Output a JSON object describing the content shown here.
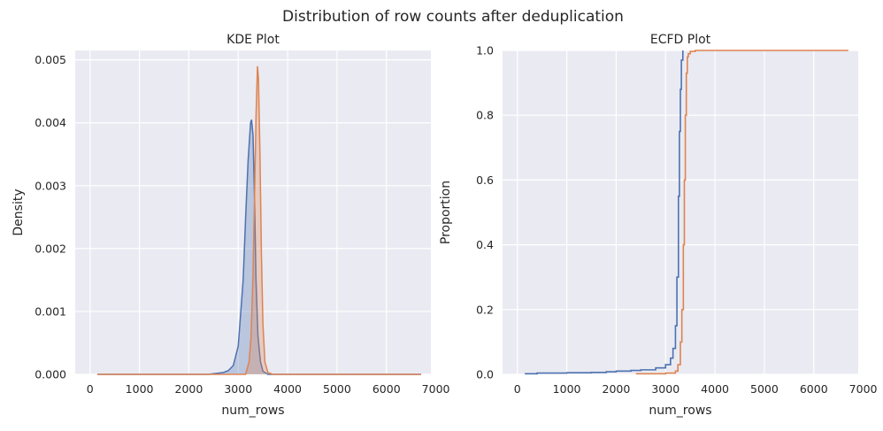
{
  "figure": {
    "suptitle": "Distribution of row counts after deduplication"
  },
  "colors": {
    "background": "#eaeaf2",
    "grid": "#ffffff",
    "series_blue": "#4c72b0",
    "series_orange": "#dd8452"
  },
  "chart_data": [
    {
      "type": "area",
      "title": "KDE Plot",
      "xlabel": "num_rows",
      "ylabel": "Density",
      "xlim": [
        -300,
        6900
      ],
      "ylim": [
        0,
        0.00515
      ],
      "xticks": [
        0,
        1000,
        2000,
        3000,
        4000,
        5000,
        6000,
        7000
      ],
      "yticks": [
        0.0,
        0.001,
        0.002,
        0.003,
        0.004,
        0.005
      ],
      "ytick_labels": [
        "0.000",
        "0.001",
        "0.002",
        "0.003",
        "0.004",
        "0.005"
      ],
      "x_range_drawn": [
        150,
        6700
      ],
      "grid": true,
      "series": [
        {
          "color": "#4c72b0",
          "fill": true,
          "points": [
            [
              150,
              0
            ],
            [
              2400,
              0
            ],
            [
              2500,
              1e-05
            ],
            [
              2600,
              2e-05
            ],
            [
              2700,
              3e-05
            ],
            [
              2800,
              6e-05
            ],
            [
              2900,
              0.00014
            ],
            [
              3000,
              0.00045
            ],
            [
              3100,
              0.0015
            ],
            [
              3150,
              0.0025
            ],
            [
              3200,
              0.0034
            ],
            [
              3250,
              0.004
            ],
            [
              3270,
              0.00405
            ],
            [
              3300,
              0.0038
            ],
            [
              3330,
              0.0028
            ],
            [
              3360,
              0.0015
            ],
            [
              3400,
              0.0006
            ],
            [
              3450,
              0.0002
            ],
            [
              3500,
              5e-05
            ],
            [
              3600,
              0
            ],
            [
              6700,
              0
            ]
          ]
        },
        {
          "color": "#dd8452",
          "fill": true,
          "points": [
            [
              150,
              0
            ],
            [
              3150,
              0
            ],
            [
              3220,
              0.0002
            ],
            [
              3260,
              0.0006
            ],
            [
              3300,
              0.0016
            ],
            [
              3330,
              0.0028
            ],
            [
              3360,
              0.0041
            ],
            [
              3390,
              0.0049
            ],
            [
              3410,
              0.0047
            ],
            [
              3440,
              0.0035
            ],
            [
              3470,
              0.0019
            ],
            [
              3500,
              0.0008
            ],
            [
              3540,
              0.0002
            ],
            [
              3600,
              3e-05
            ],
            [
              3700,
              0
            ],
            [
              6700,
              0
            ]
          ]
        }
      ]
    },
    {
      "type": "line",
      "title": "ECFD Plot",
      "xlabel": "num_rows",
      "ylabel": "Proportion",
      "xlim": [
        -300,
        6900
      ],
      "ylim": [
        0,
        1.0
      ],
      "xticks": [
        0,
        1000,
        2000,
        3000,
        4000,
        5000,
        6000,
        7000
      ],
      "yticks": [
        0.0,
        0.2,
        0.4,
        0.6,
        0.8,
        1.0
      ],
      "ytick_labels": [
        "0.0",
        "0.2",
        "0.4",
        "0.6",
        "0.8",
        "1.0"
      ],
      "grid": true,
      "series": [
        {
          "color": "#4c72b0",
          "step": true,
          "points": [
            [
              150,
              0.002
            ],
            [
              400,
              0.004
            ],
            [
              1000,
              0.005
            ],
            [
              1500,
              0.006
            ],
            [
              1800,
              0.008
            ],
            [
              2000,
              0.01
            ],
            [
              2300,
              0.012
            ],
            [
              2500,
              0.014
            ],
            [
              2800,
              0.02
            ],
            [
              3000,
              0.03
            ],
            [
              3100,
              0.05
            ],
            [
              3150,
              0.08
            ],
            [
              3200,
              0.15
            ],
            [
              3230,
              0.3
            ],
            [
              3260,
              0.55
            ],
            [
              3280,
              0.75
            ],
            [
              3300,
              0.88
            ],
            [
              3320,
              0.97
            ],
            [
              3350,
              1.0
            ],
            [
              3350,
              1.0
            ]
          ]
        },
        {
          "color": "#dd8452",
          "step": true,
          "points": [
            [
              2400,
              0.002
            ],
            [
              3000,
              0.004
            ],
            [
              3200,
              0.01
            ],
            [
              3250,
              0.03
            ],
            [
              3300,
              0.1
            ],
            [
              3330,
              0.2
            ],
            [
              3360,
              0.4
            ],
            [
              3380,
              0.6
            ],
            [
              3400,
              0.8
            ],
            [
              3420,
              0.93
            ],
            [
              3440,
              0.98
            ],
            [
              3460,
              0.99
            ],
            [
              3500,
              0.997
            ],
            [
              3600,
              1.0
            ],
            [
              6700,
              1.0
            ]
          ]
        }
      ]
    }
  ]
}
